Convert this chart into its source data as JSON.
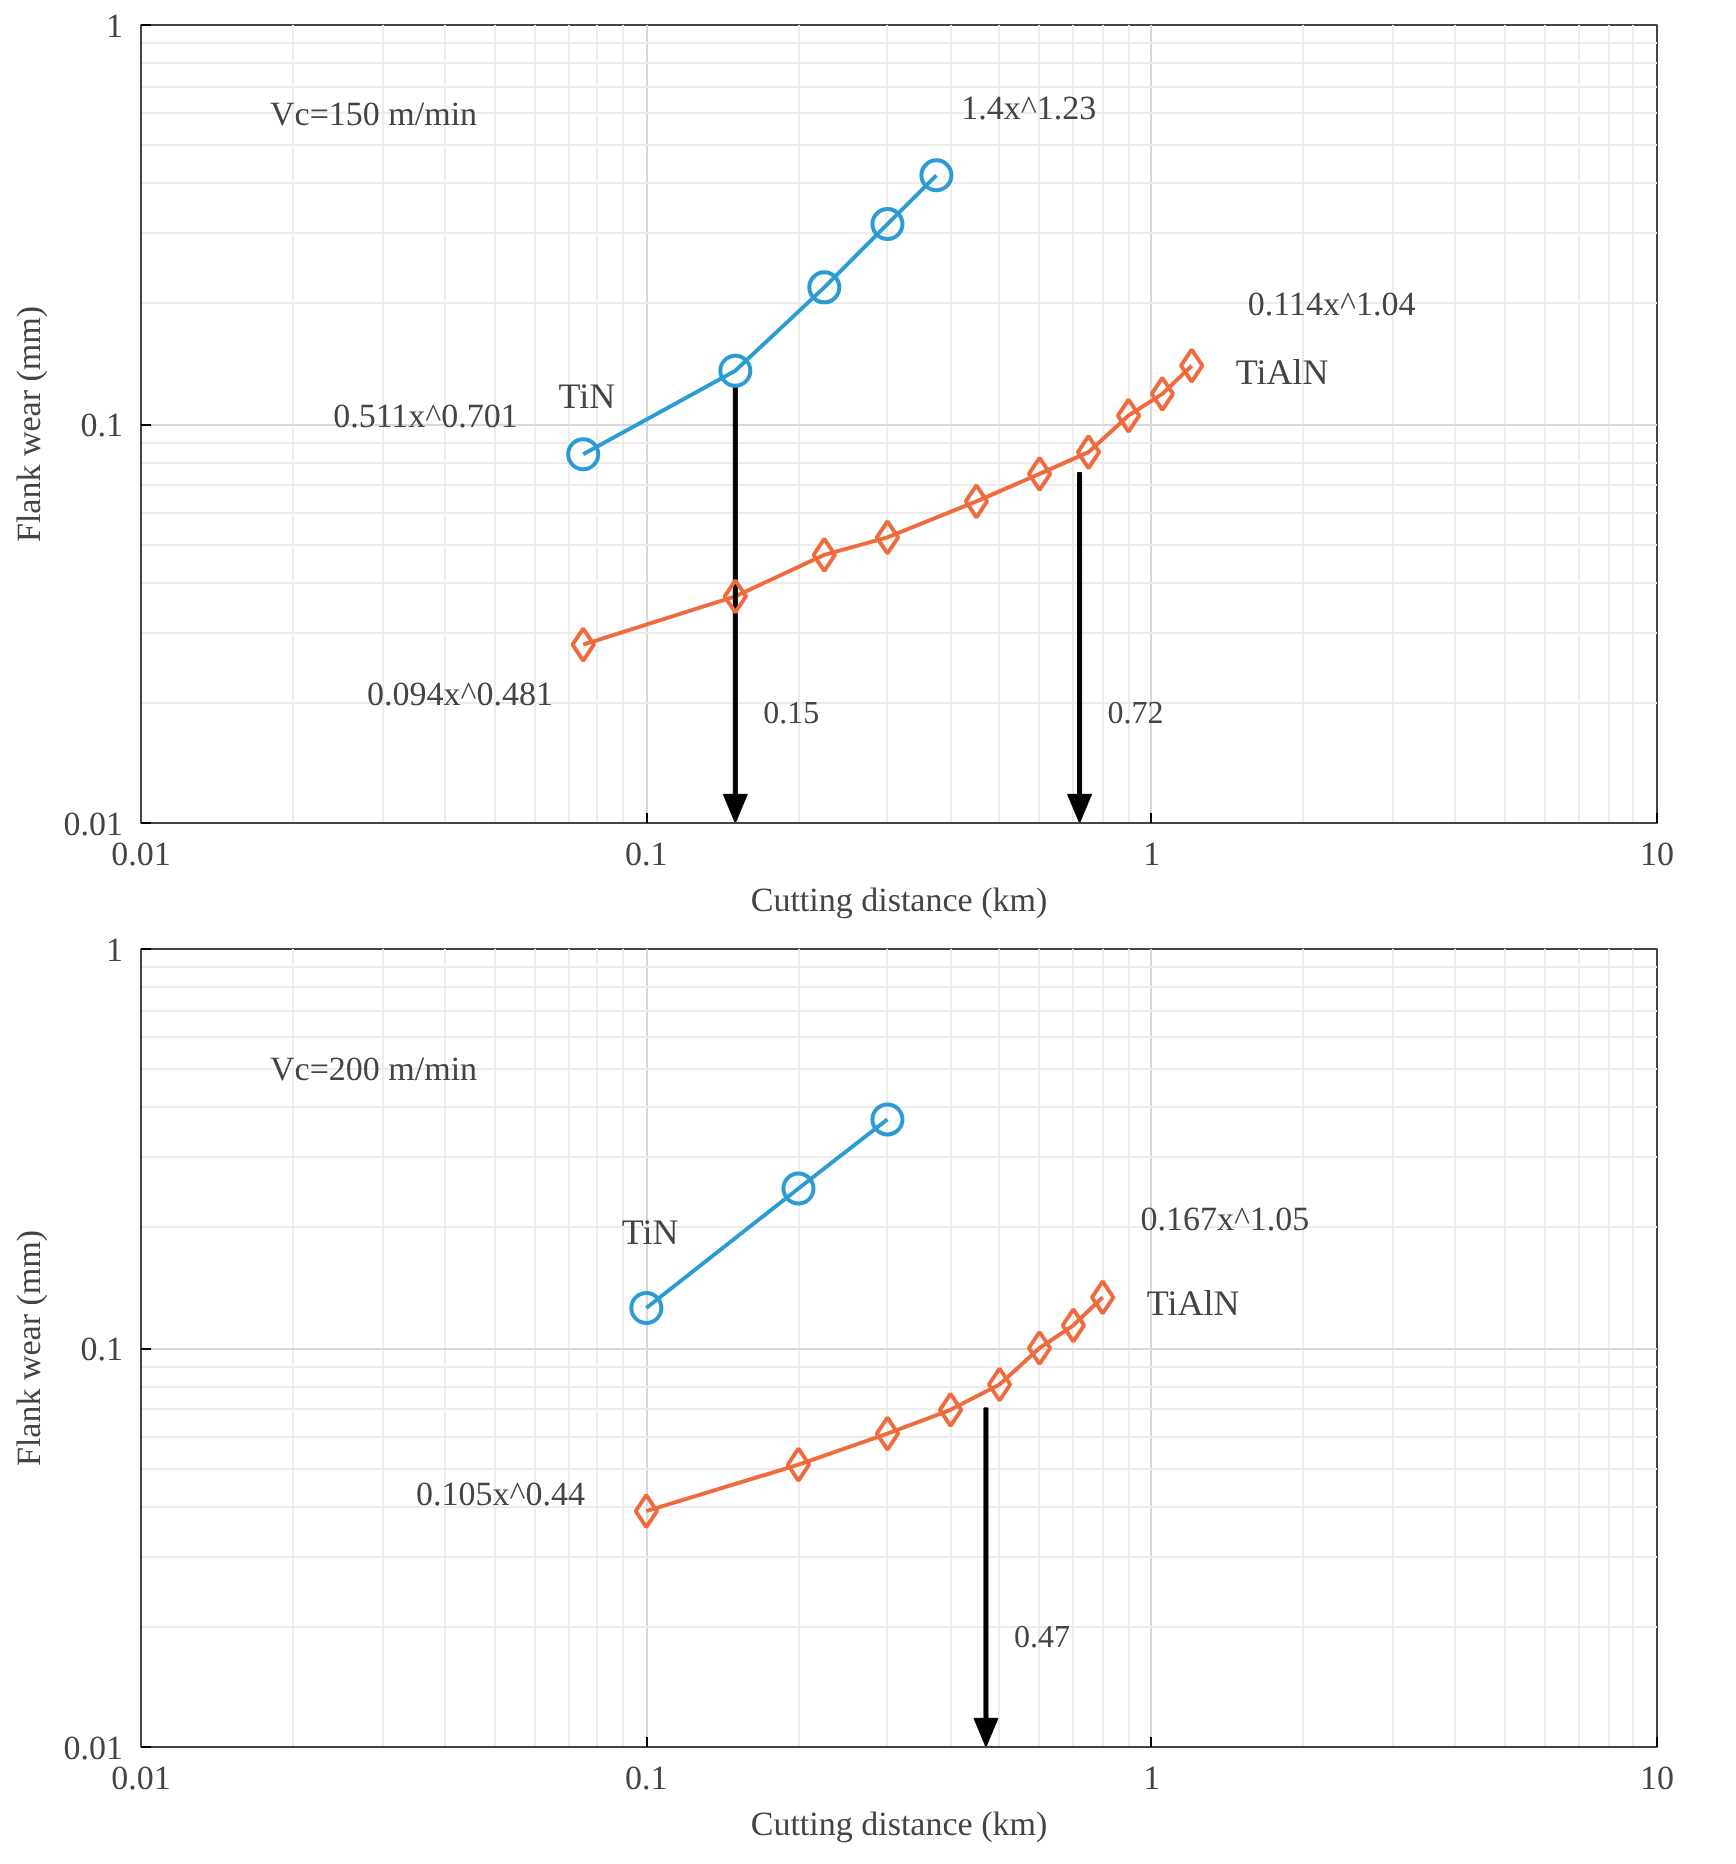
{
  "chart_data": [
    {
      "type": "line",
      "xlabel": "Cutting distance (km)",
      "ylabel": "Flank wear (mm)",
      "log": "xy",
      "grid": true,
      "xlim": [
        0.01,
        10
      ],
      "ylim": [
        0.01,
        1
      ],
      "xticks": [
        0.01,
        0.1,
        1,
        10
      ],
      "yticks": [
        0.01,
        0.1,
        1
      ],
      "series": [
        {
          "name": "TiN",
          "color": "#2b9bd4",
          "marker": "circle",
          "x": [
            0.075,
            0.15,
            0.225,
            0.3,
            0.375
          ],
          "values": [
            0.084,
            0.136,
            0.22,
            0.317,
            0.42
          ]
        },
        {
          "name": "TiAlN",
          "color": "#ef6a3c",
          "marker": "diamond",
          "x": [
            0.075,
            0.15,
            0.225,
            0.3,
            0.45,
            0.6,
            0.75,
            0.9,
            1.05,
            1.2
          ],
          "values": [
            0.028,
            0.037,
            0.047,
            0.052,
            0.064,
            0.075,
            0.085,
            0.105,
            0.119,
            0.14
          ]
        }
      ],
      "annotations": [
        "Vc=150 m/min",
        "1.4x^1.23",
        "0.511x^0.701",
        "0.114x^1.04",
        "0.094x^0.481"
      ],
      "ref_lines": [
        {
          "axis": "x",
          "value": 0.15,
          "label": "0.15"
        },
        {
          "axis": "x",
          "value": 0.72,
          "label": "0.72"
        }
      ]
    },
    {
      "type": "line",
      "xlabel": "Cutting distance (km)",
      "ylabel": "Flank wear (mm)",
      "log": "xy",
      "grid": true,
      "xlim": [
        0.01,
        10
      ],
      "ylim": [
        0.01,
        1
      ],
      "xticks": [
        0.01,
        0.1,
        1,
        10
      ],
      "yticks": [
        0.01,
        0.1,
        1
      ],
      "series": [
        {
          "name": "TiN",
          "color": "#2b9bd4",
          "marker": "circle",
          "x": [
            0.1,
            0.2,
            0.3
          ],
          "values": [
            0.126,
            0.251,
            0.374
          ]
        },
        {
          "name": "TiAlN",
          "color": "#ef6a3c",
          "marker": "diamond",
          "x": [
            0.1,
            0.2,
            0.3,
            0.4,
            0.5,
            0.6,
            0.7,
            0.8
          ],
          "values": [
            0.039,
            0.051,
            0.061,
            0.07,
            0.081,
            0.1,
            0.114,
            0.134
          ]
        }
      ],
      "annotations": [
        "Vc=200 m/min",
        "0.167x^1.05",
        "0.105x^0.44"
      ],
      "ref_lines": [
        {
          "axis": "x",
          "value": 0.47,
          "label": "0.47"
        }
      ]
    }
  ]
}
